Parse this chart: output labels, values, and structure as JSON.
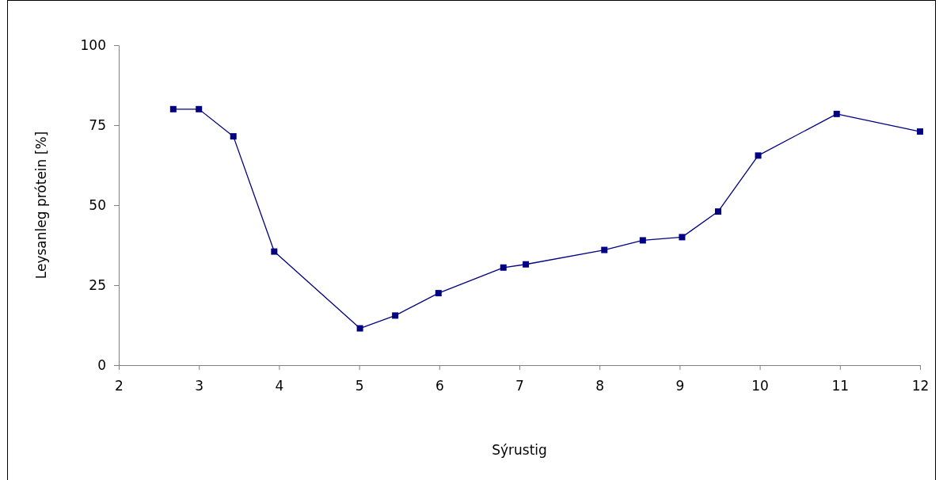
{
  "chart_data": {
    "type": "line",
    "xlabel": "Sýrustig",
    "ylabel": "Leysanleg prótein [%]",
    "x": [
      2.68,
      3.0,
      3.43,
      3.94,
      5.01,
      5.45,
      5.99,
      6.8,
      7.08,
      8.06,
      8.54,
      9.03,
      9.48,
      9.98,
      10.96,
      12.0
    ],
    "series": [
      {
        "color": "#000080",
        "values": [
          80,
          80,
          71.5,
          35.5,
          11.5,
          15.5,
          22.5,
          30.5,
          31.5,
          36,
          39,
          40,
          48,
          65.5,
          78.5,
          73
        ]
      }
    ],
    "xlim": [
      2,
      12
    ],
    "xticks": [
      2,
      3,
      4,
      5,
      6,
      7,
      8,
      9,
      10,
      11,
      12
    ],
    "ylim": [
      0,
      100
    ],
    "yticks": [
      0,
      25,
      50,
      75,
      100
    ],
    "grid": false,
    "marker": "square",
    "line_style": "solid"
  }
}
